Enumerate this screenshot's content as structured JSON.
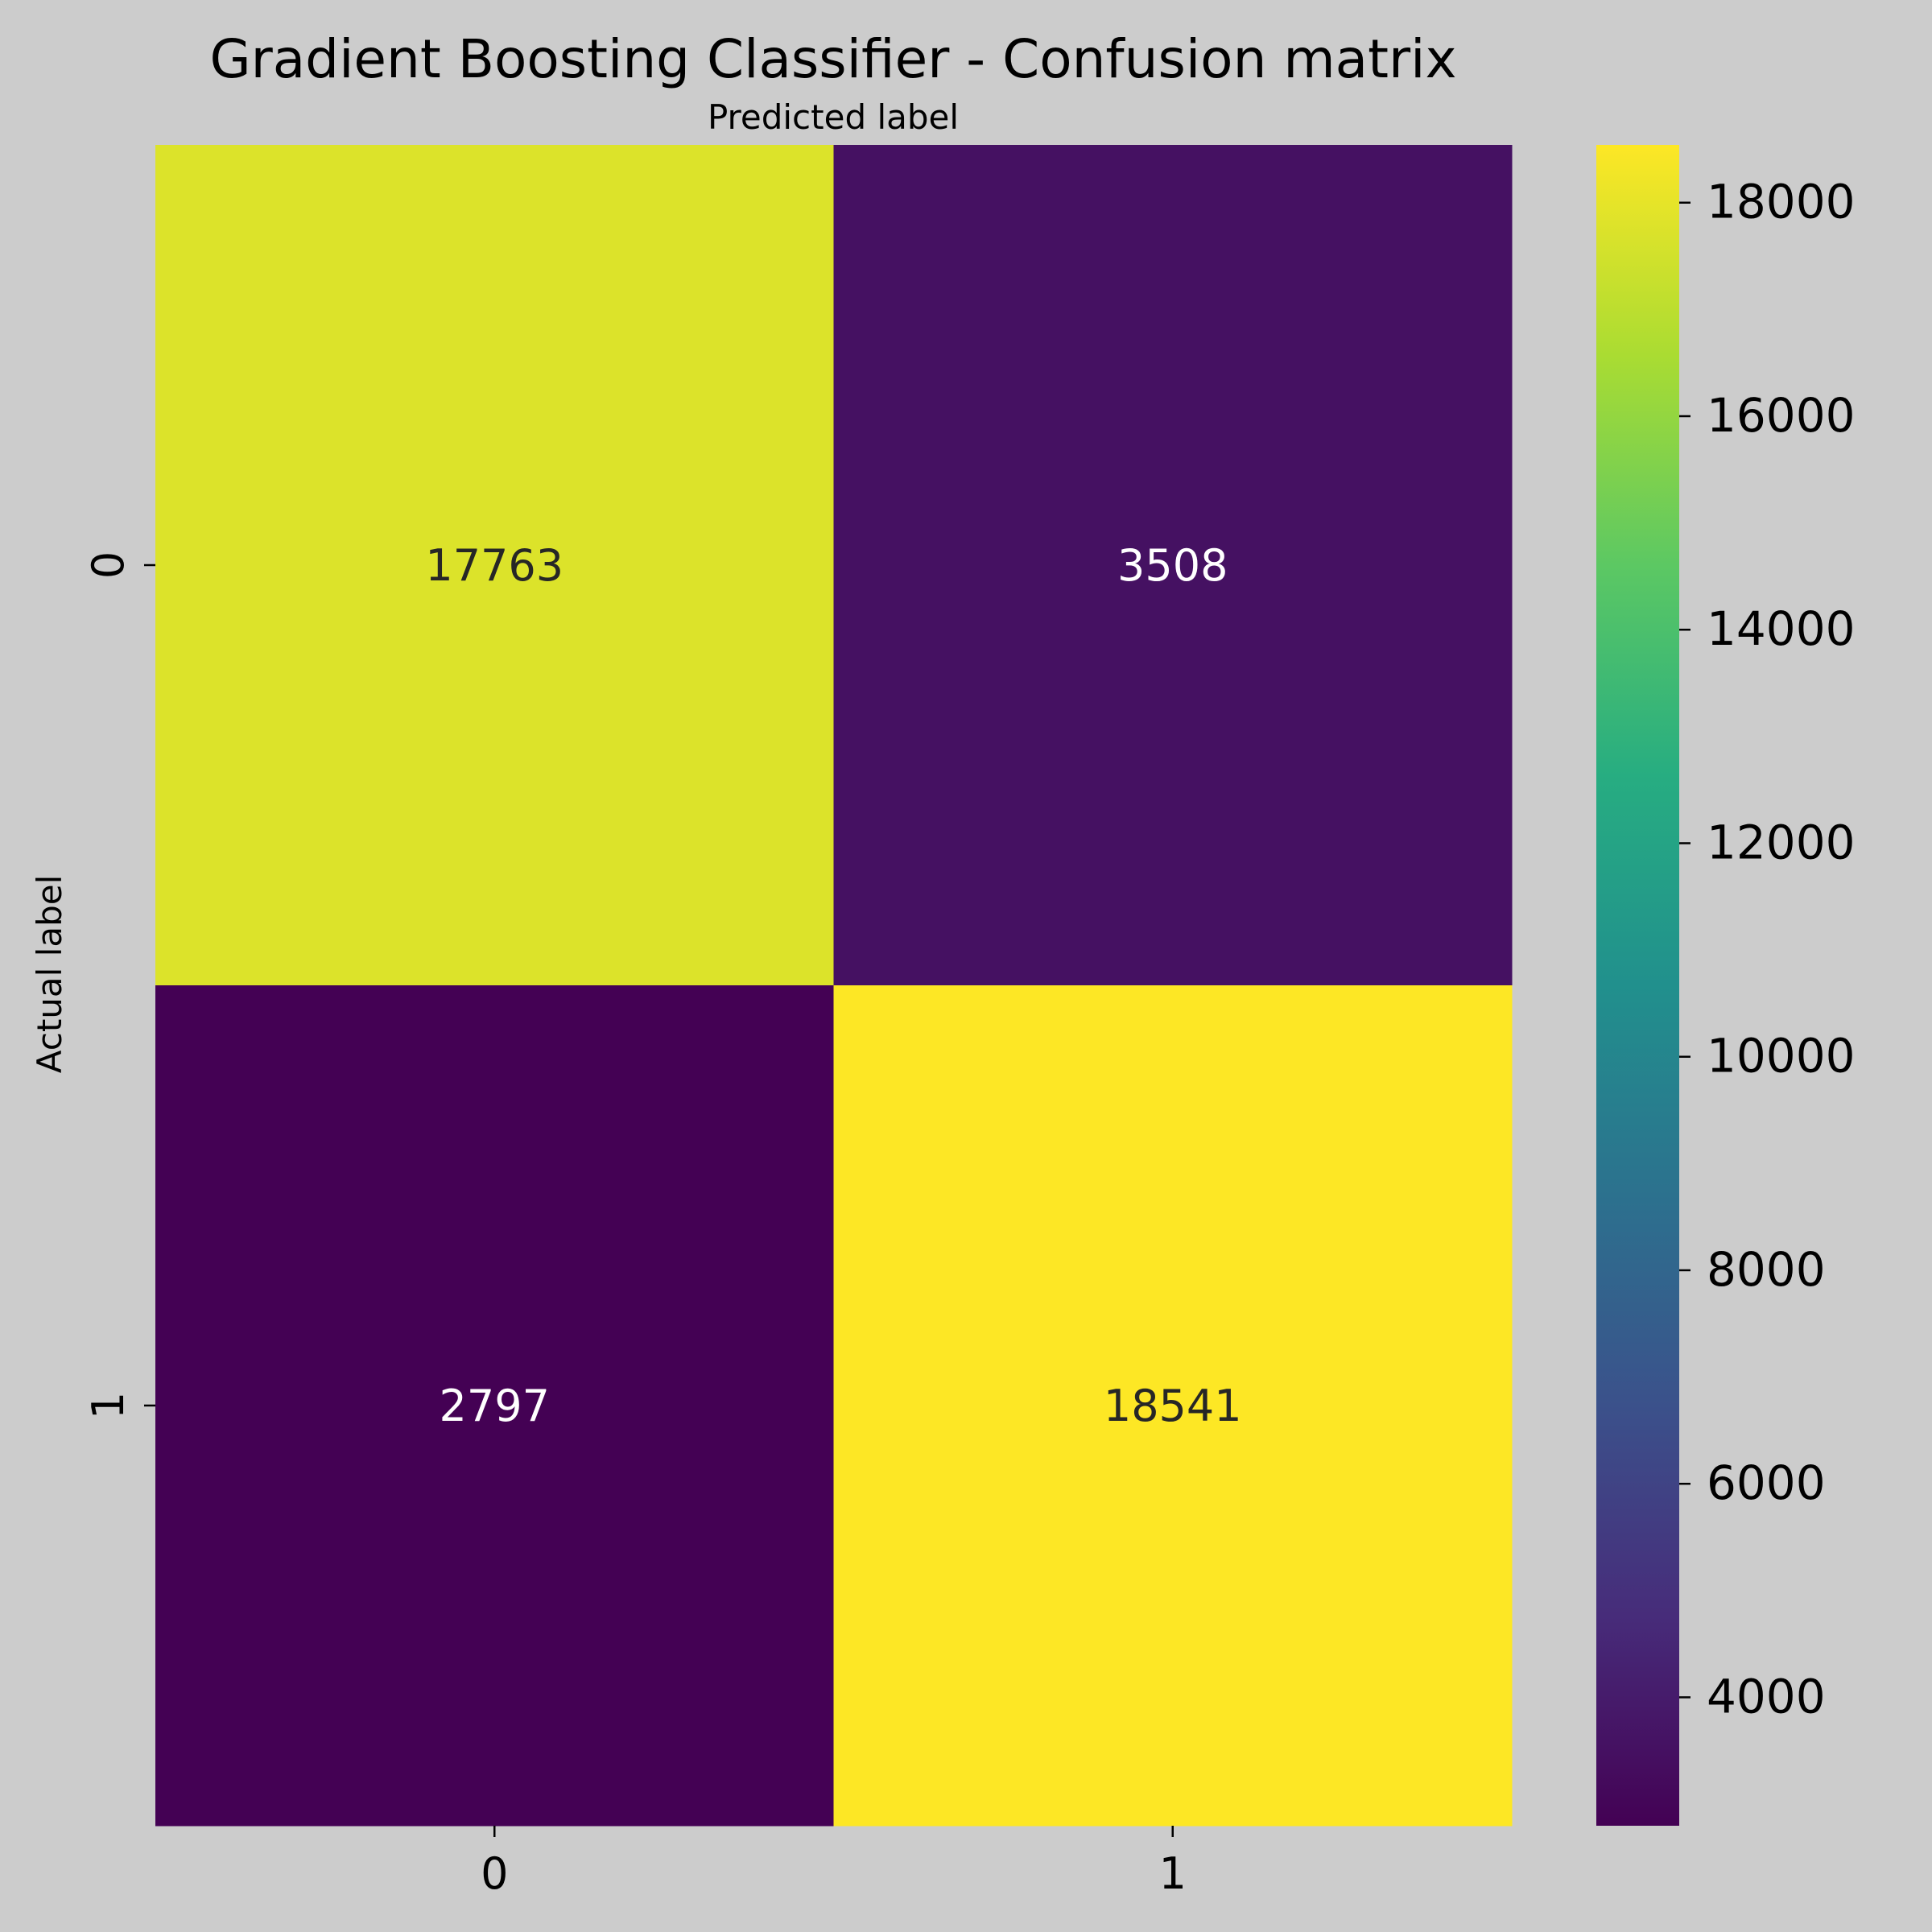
{
  "chart_data": {
    "type": "heatmap",
    "title": "Gradient Boosting Classifier - Confusion matrix",
    "xlabel": "Predicted label",
    "ylabel": "Actual label",
    "x_categories": [
      "0",
      "1"
    ],
    "y_categories": [
      "0",
      "1"
    ],
    "values": [
      [
        17763,
        3508
      ],
      [
        2797,
        18541
      ]
    ],
    "colormap": "viridis",
    "colorbar": {
      "min": 2797,
      "max": 18541,
      "ticks": [
        4000,
        6000,
        8000,
        10000,
        12000,
        14000,
        16000,
        18000
      ],
      "tick_labels": [
        "4000",
        "6000",
        "8000",
        "10000",
        "12000",
        "14000",
        "16000",
        "18000"
      ]
    },
    "annotation_colors": {
      "on_light": "#262626",
      "on_dark": "#ffffff"
    }
  }
}
